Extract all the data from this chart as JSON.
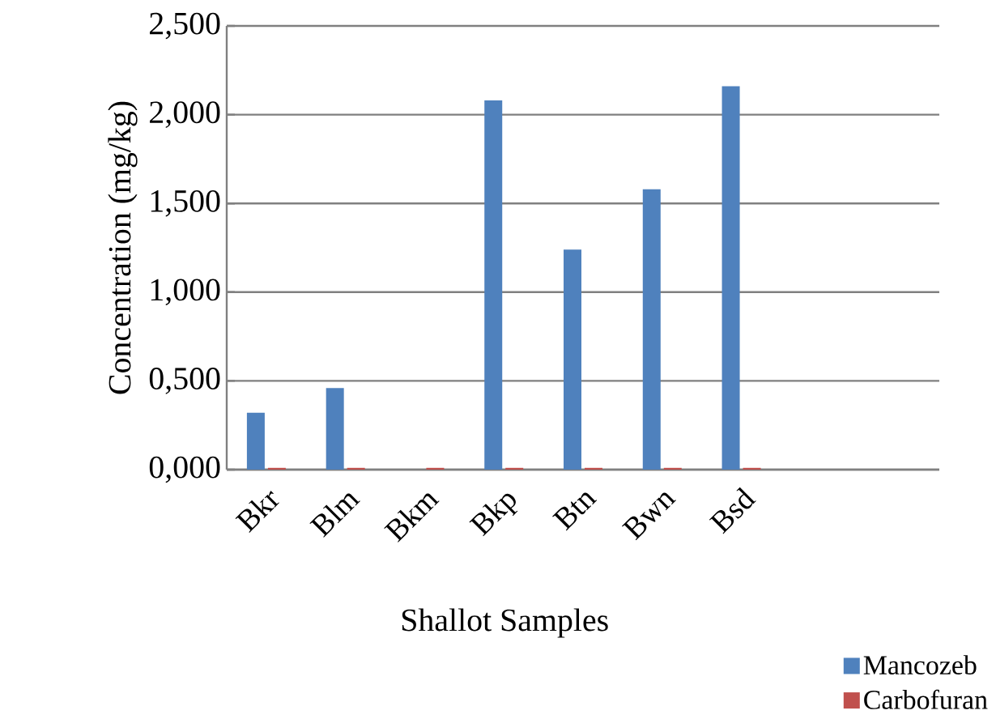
{
  "chart_data": {
    "type": "bar",
    "xlabel": "Shallot Samples",
    "ylabel": "Concentration (mg/kg)",
    "categories": [
      "Bkr",
      "Blm",
      "Bkm",
      "Bkp",
      "Btn",
      "Bwn",
      "Bsd",
      null,
      null
    ],
    "series": [
      {
        "name": "Mancozeb",
        "color": "#4f81bd",
        "values": [
          0.32,
          0.46,
          0.0,
          2.08,
          1.24,
          1.58,
          2.16,
          null,
          null
        ]
      },
      {
        "name": "Carbofuran",
        "color": "#c0504d",
        "values": [
          0.01,
          0.01,
          0.01,
          0.01,
          0.01,
          0.01,
          0.01,
          null,
          null
        ]
      }
    ],
    "ylim": [
      0,
      2.5
    ],
    "yticks": [
      {
        "value": 0,
        "label": "0,000"
      },
      {
        "value": 0.5,
        "label": "0,500"
      },
      {
        "value": 1,
        "label": "1,000"
      },
      {
        "value": 1.5,
        "label": "1,500"
      },
      {
        "value": 2,
        "label": "2,000"
      },
      {
        "value": 2.5,
        "label": "2,500"
      }
    ],
    "grid": "y",
    "legend": "bottom right"
  }
}
